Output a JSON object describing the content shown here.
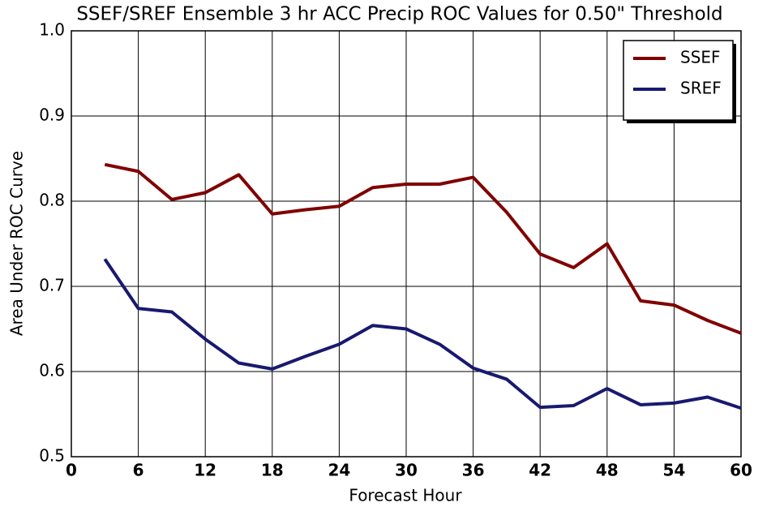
{
  "chart_data": {
    "type": "line",
    "title": "SSEF/SREF Ensemble 3 hr ACC Precip ROC Values for 0.50\" Threshold",
    "x_label": "Forecast Hour",
    "y_label": "Area Under ROC Curve",
    "x": [
      3,
      6,
      9,
      12,
      15,
      18,
      21,
      24,
      27,
      30,
      33,
      36,
      39,
      42,
      45,
      48,
      51,
      54,
      57,
      60
    ],
    "series": [
      {
        "name": "SSEF",
        "color": "#800000",
        "values": [
          0.843,
          0.835,
          0.802,
          0.81,
          0.831,
          0.785,
          0.79,
          0.794,
          0.816,
          0.82,
          0.82,
          0.828,
          0.787,
          0.738,
          0.722,
          0.75,
          0.683,
          0.678,
          0.66,
          0.645
        ]
      },
      {
        "name": "SREF",
        "color": "#191970",
        "values": [
          0.732,
          0.674,
          0.67,
          0.638,
          0.61,
          0.603,
          0.618,
          0.632,
          0.654,
          0.65,
          0.632,
          0.604,
          0.591,
          0.558,
          0.56,
          0.58,
          0.561,
          0.563,
          0.57,
          0.557
        ]
      }
    ],
    "xlim": [
      0,
      60
    ],
    "xticks": [
      0,
      6,
      12,
      18,
      24,
      30,
      36,
      42,
      48,
      54,
      60
    ],
    "ylim": [
      0.5,
      1
    ],
    "yticks": [
      0.5,
      0.6,
      0.7,
      0.8,
      0.9,
      {
        "value": 1,
        "label": "1.0"
      }
    ],
    "grid": true,
    "legend": "upper right"
  }
}
